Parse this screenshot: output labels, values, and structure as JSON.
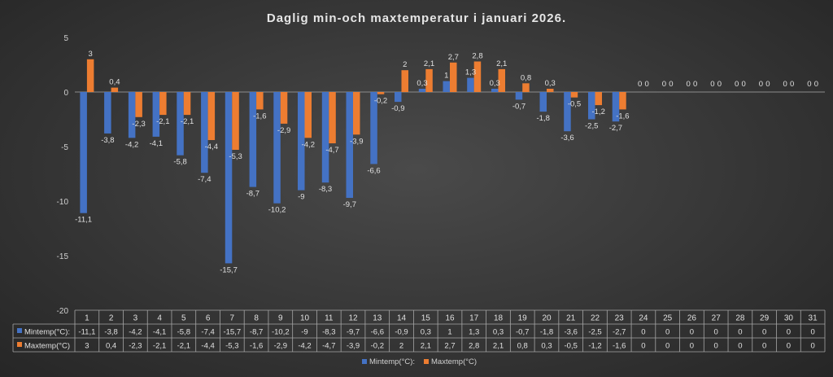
{
  "chart_data": {
    "type": "bar",
    "title": "Daglig min-och maxtemperatur i januari 2026.",
    "xlabel": "",
    "ylabel": "",
    "ylim": [
      -20,
      5
    ],
    "yticks": [
      5,
      0,
      -5,
      -10,
      -15,
      -20
    ],
    "grid": false,
    "legend_position": "bottom",
    "data_table": true,
    "categories": [
      "1",
      "2",
      "3",
      "4",
      "5",
      "6",
      "7",
      "8",
      "9",
      "10",
      "11",
      "12",
      "13",
      "14",
      "15",
      "16",
      "17",
      "18",
      "19",
      "20",
      "21",
      "22",
      "23",
      "24",
      "25",
      "26",
      "27",
      "28",
      "29",
      "30",
      "31"
    ],
    "series": [
      {
        "name": "Mintemp(°C):",
        "color": "#4472c4",
        "values": [
          -11.1,
          -3.8,
          -4.2,
          -4.1,
          -5.8,
          -7.4,
          -15.7,
          -8.7,
          -10.2,
          -9,
          -8.3,
          -9.7,
          -6.6,
          -0.9,
          0.3,
          1,
          1.3,
          0.3,
          -0.7,
          -1.8,
          -3.6,
          -2.5,
          -2.7,
          0,
          0,
          0,
          0,
          0,
          0,
          0,
          0
        ],
        "labels": [
          "-11,1",
          "-3,8",
          "-4,2",
          "-4,1",
          "-5,8",
          "-7,4",
          "-15,7",
          "-8,7",
          "-10,2",
          "-9",
          "-8,3",
          "-9,7",
          "-6,6",
          "-0,9",
          "0,3",
          "1",
          "1,3",
          "0,3",
          "-0,7",
          "-1,8",
          "-3,6",
          "-2,5",
          "-2,7",
          "0",
          "0",
          "0",
          "0",
          "0",
          "0",
          "0",
          "0"
        ]
      },
      {
        "name": "Maxtemp(°C)",
        "color": "#ed7d31",
        "values": [
          3,
          0.4,
          -2.3,
          -2.1,
          -2.1,
          -4.4,
          -5.3,
          -1.6,
          -2.9,
          -4.2,
          -4.7,
          -3.9,
          -0.2,
          2,
          2.1,
          2.7,
          2.8,
          2.1,
          0.8,
          0.3,
          -0.5,
          -1.2,
          -1.6,
          0,
          0,
          0,
          0,
          0,
          0,
          0,
          0
        ],
        "labels": [
          "3",
          "0,4",
          "-2,3",
          "-2,1",
          "-2,1",
          "-4,4",
          "-5,3",
          "-1,6",
          "-2,9",
          "-4,2",
          "-4,7",
          "-3,9",
          "-0,2",
          "2",
          "2,1",
          "2,7",
          "2,8",
          "2,1",
          "0,8",
          "0,3",
          "-0,5",
          "-1,2",
          "-1,6",
          "0",
          "0",
          "0",
          "0",
          "0",
          "0",
          "0",
          "0"
        ]
      }
    ]
  }
}
